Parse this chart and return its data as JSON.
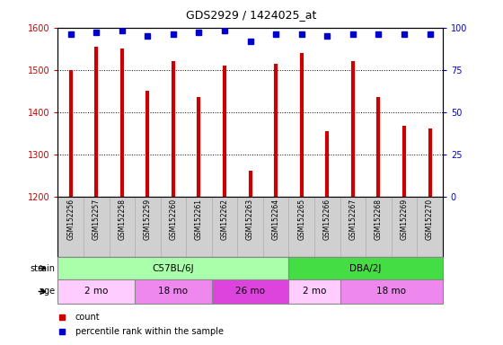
{
  "title": "GDS2929 / 1424025_at",
  "samples": [
    "GSM152256",
    "GSM152257",
    "GSM152258",
    "GSM152259",
    "GSM152260",
    "GSM152261",
    "GSM152262",
    "GSM152263",
    "GSM152264",
    "GSM152265",
    "GSM152266",
    "GSM152267",
    "GSM152268",
    "GSM152269",
    "GSM152270"
  ],
  "counts": [
    1500,
    1555,
    1550,
    1450,
    1520,
    1435,
    1510,
    1262,
    1515,
    1540,
    1355,
    1520,
    1435,
    1368,
    1362
  ],
  "percentile_ranks": [
    96,
    97,
    98,
    95,
    96,
    97,
    98,
    92,
    96,
    96,
    95,
    96,
    96,
    96,
    96
  ],
  "ylim_left": [
    1200,
    1600
  ],
  "ylim_right": [
    0,
    100
  ],
  "yticks_left": [
    1200,
    1300,
    1400,
    1500,
    1600
  ],
  "yticks_right": [
    0,
    25,
    50,
    75,
    100
  ],
  "bar_color": "#cc0000",
  "dot_color": "#0000cc",
  "plot_bg_color": "#ffffff",
  "strain_groups": [
    {
      "label": "C57BL/6J",
      "start": 0,
      "end": 9,
      "color": "#aaffaa"
    },
    {
      "label": "DBA/2J",
      "start": 9,
      "end": 15,
      "color": "#44dd44"
    }
  ],
  "age_groups": [
    {
      "label": "2 mo",
      "start": 0,
      "end": 3,
      "color": "#ffccff"
    },
    {
      "label": "18 mo",
      "start": 3,
      "end": 6,
      "color": "#ee88ee"
    },
    {
      "label": "26 mo",
      "start": 6,
      "end": 9,
      "color": "#dd44dd"
    },
    {
      "label": "2 mo",
      "start": 9,
      "end": 11,
      "color": "#ffccff"
    },
    {
      "label": "18 mo",
      "start": 11,
      "end": 15,
      "color": "#ee88ee"
    }
  ],
  "legend_count_label": "count",
  "legend_pct_label": "percentile rank within the sample",
  "left_tick_color": "#cc0000",
  "right_tick_color": "#0000cc",
  "label_bg_color": "#d0d0d0",
  "grid_dotted_color": "#555555"
}
